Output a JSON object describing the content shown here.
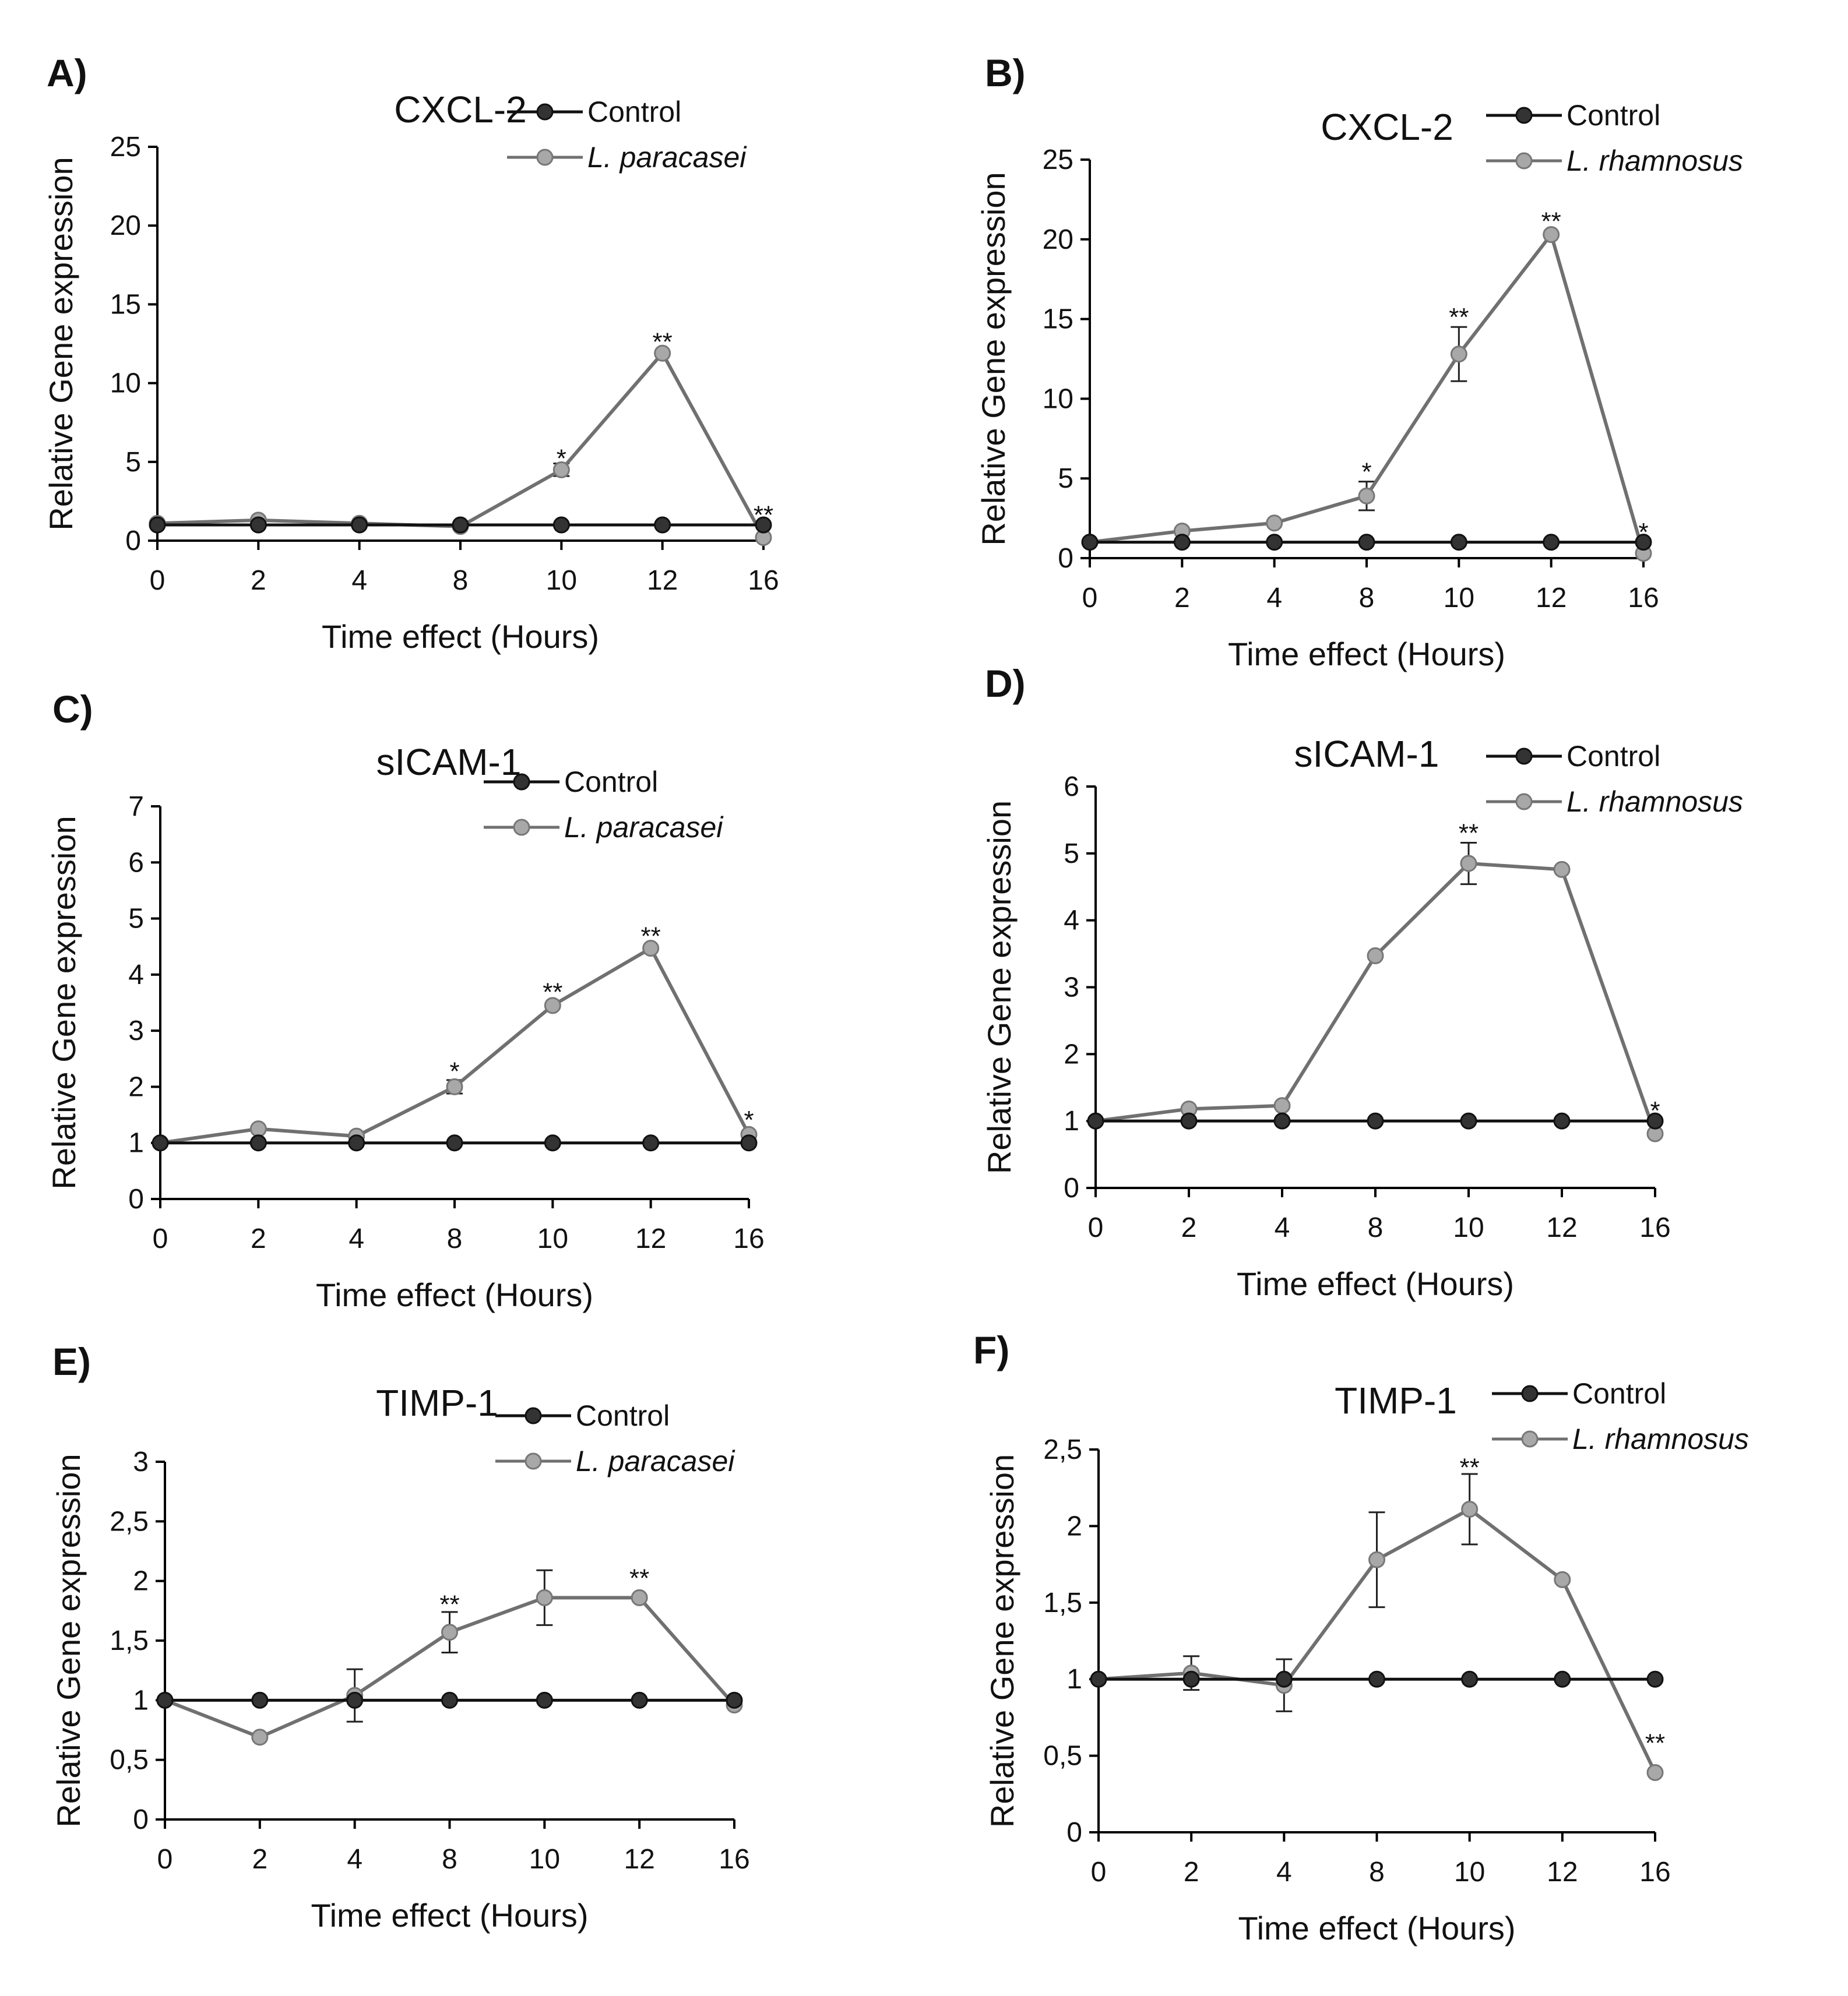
{
  "figure": {
    "description_visible": false
  },
  "chart_data": [
    {
      "panel": "A)",
      "type": "line",
      "title": "CXCL-2",
      "xlabel": "Time effect (Hours)",
      "ylabel": "Relative Gene expression",
      "categories": [
        "0",
        "2",
        "4",
        "8",
        "10",
        "12",
        "16"
      ],
      "ylim": [
        0,
        25
      ],
      "yticks": [
        0,
        5,
        10,
        15,
        20,
        25
      ],
      "ytick_labels": [
        "0",
        "5",
        "10",
        "15",
        "20",
        "25"
      ],
      "legend_position": "top-right",
      "series": [
        {
          "name": "Control",
          "italic": false,
          "color": "#333333",
          "values": [
            1,
            1,
            1,
            1,
            1,
            1,
            1
          ],
          "errors": [
            0,
            0,
            0,
            0,
            0,
            0,
            0
          ]
        },
        {
          "name": "L. paracasei",
          "italic": true,
          "color": "#A8A8A8",
          "values": [
            1.1,
            1.3,
            1.1,
            0.9,
            4.5,
            11.9,
            0.2
          ],
          "errors": [
            0,
            0,
            0,
            0,
            0.4,
            0,
            0
          ]
        }
      ],
      "annotations": [
        {
          "x": "10",
          "value": 5.2,
          "text": "*"
        },
        {
          "x": "12",
          "value": 12.6,
          "text": "**"
        },
        {
          "x": "16",
          "value": 1.6,
          "text": "**"
        }
      ]
    },
    {
      "panel": "B)",
      "type": "line",
      "title": "CXCL-2",
      "xlabel": "Time effect (Hours)",
      "ylabel": "Relative Gene expression",
      "categories": [
        "0",
        "2",
        "4",
        "8",
        "10",
        "12",
        "16"
      ],
      "ylim": [
        0,
        25
      ],
      "yticks": [
        0,
        5,
        10,
        15,
        20,
        25
      ],
      "ytick_labels": [
        "0",
        "5",
        "10",
        "15",
        "20",
        "25"
      ],
      "legend_position": "top-right",
      "series": [
        {
          "name": "Control",
          "italic": false,
          "color": "#333333",
          "values": [
            1,
            1,
            1,
            1,
            1,
            1,
            1
          ],
          "errors": [
            0,
            0,
            0,
            0,
            0,
            0,
            0
          ]
        },
        {
          "name": "L. rhamnosus",
          "italic": true,
          "color": "#A8A8A8",
          "values": [
            1,
            1.7,
            2.2,
            3.9,
            12.8,
            20.3,
            0.3
          ],
          "errors": [
            0,
            0,
            0,
            0.9,
            1.7,
            0,
            0
          ]
        }
      ],
      "annotations": [
        {
          "x": "8",
          "value": 5.4,
          "text": "*"
        },
        {
          "x": "10",
          "value": 15.1,
          "text": "**"
        },
        {
          "x": "12",
          "value": 21.1,
          "text": "**"
        },
        {
          "x": "16",
          "value": 1.6,
          "text": "*"
        }
      ]
    },
    {
      "panel": "C)",
      "type": "line",
      "title": "sICAM-1",
      "xlabel": "Time effect (Hours)",
      "ylabel": "Relative Gene expression",
      "categories": [
        "0",
        "2",
        "4",
        "8",
        "10",
        "12",
        "16"
      ],
      "ylim": [
        0,
        7
      ],
      "yticks": [
        0,
        1,
        2,
        3,
        4,
        5,
        6,
        7
      ],
      "ytick_labels": [
        "0",
        "1",
        "2",
        "3",
        "4",
        "5",
        "6",
        "7"
      ],
      "legend_position": "top-right",
      "series": [
        {
          "name": "Control",
          "italic": false,
          "color": "#333333",
          "values": [
            1,
            1,
            1,
            1,
            1,
            1,
            1
          ],
          "errors": [
            0,
            0,
            0,
            0,
            0,
            0,
            0
          ]
        },
        {
          "name": "L. paracasei",
          "italic": true,
          "color": "#A8A8A8",
          "values": [
            1,
            1.25,
            1.12,
            2,
            3.45,
            4.47,
            1.15
          ],
          "errors": [
            0,
            0,
            0,
            0.12,
            0,
            0,
            0
          ]
        }
      ],
      "annotations": [
        {
          "x": "8",
          "value": 2.27,
          "text": "*"
        },
        {
          "x": "10",
          "value": 3.68,
          "text": "**"
        },
        {
          "x": "12",
          "value": 4.68,
          "text": "**"
        },
        {
          "x": "16",
          "value": 1.4,
          "text": "*"
        }
      ]
    },
    {
      "panel": "D)",
      "type": "line",
      "title": "sICAM-1",
      "xlabel": "Time effect (Hours)",
      "ylabel": "Relative Gene expression",
      "categories": [
        "0",
        "2",
        "4",
        "8",
        "10",
        "12",
        "16"
      ],
      "ylim": [
        0,
        6
      ],
      "yticks": [
        0,
        1,
        2,
        3,
        4,
        5,
        6
      ],
      "ytick_labels": [
        "0",
        "1",
        "2",
        "3",
        "4",
        "5",
        "6"
      ],
      "legend_position": "top-right",
      "series": [
        {
          "name": "Control",
          "italic": false,
          "color": "#333333",
          "values": [
            1,
            1,
            1,
            1,
            1,
            1,
            1
          ],
          "errors": [
            0,
            0,
            0,
            0,
            0,
            0,
            0
          ]
        },
        {
          "name": "L. rhamnosus",
          "italic": true,
          "color": "#A8A8A8",
          "values": [
            1,
            1.18,
            1.23,
            3.47,
            4.85,
            4.76,
            0.81
          ],
          "errors": [
            0,
            0,
            0,
            0,
            0.31,
            0,
            0
          ]
        }
      ],
      "annotations": [
        {
          "x": "10",
          "value": 5.3,
          "text": "**"
        },
        {
          "x": "16",
          "value": 1.15,
          "text": "*"
        }
      ]
    },
    {
      "panel": "E)",
      "type": "line",
      "title": "TIMP-1",
      "xlabel": "Time effect (Hours)",
      "ylabel": "Relative Gene expression",
      "categories": [
        "0",
        "2",
        "4",
        "8",
        "10",
        "12",
        "16"
      ],
      "ylim": [
        0,
        3
      ],
      "yticks": [
        0,
        0.5,
        1,
        1.5,
        2,
        2.5,
        3
      ],
      "ytick_labels": [
        "0",
        "0,5",
        "1",
        "1,5",
        "2",
        "2,5",
        "3"
      ],
      "legend_position": "top-right",
      "series": [
        {
          "name": "Control",
          "italic": false,
          "color": "#333333",
          "values": [
            1,
            1,
            1,
            1,
            1,
            1,
            1
          ],
          "errors": [
            0,
            0,
            0,
            0,
            0,
            0,
            0
          ]
        },
        {
          "name": "L. paracasei",
          "italic": true,
          "color": "#A8A8A8",
          "values": [
            1,
            0.69,
            1.04,
            1.57,
            1.86,
            1.86,
            0.96
          ],
          "errors": [
            0,
            0,
            0.22,
            0.17,
            0.23,
            0,
            0
          ]
        }
      ],
      "annotations": [
        {
          "x": "8",
          "value": 1.8,
          "text": "**"
        },
        {
          "x": "12",
          "value": 2.02,
          "text": "**"
        }
      ]
    },
    {
      "panel": "F)",
      "type": "line",
      "title": "TIMP-1",
      "xlabel": "Time effect (Hours)",
      "ylabel": "Relative Gene expression",
      "categories": [
        "0",
        "2",
        "4",
        "8",
        "10",
        "12",
        "16"
      ],
      "ylim": [
        0,
        2.5
      ],
      "yticks": [
        0,
        0.5,
        1,
        1.5,
        2,
        2.5
      ],
      "ytick_labels": [
        "0",
        "0,5",
        "1",
        "1,5",
        "2",
        "2,5"
      ],
      "legend_position": "top-right",
      "series": [
        {
          "name": "Control",
          "italic": false,
          "color": "#333333",
          "values": [
            1,
            1,
            1,
            1,
            1,
            1,
            1
          ],
          "errors": [
            0,
            0,
            0,
            0,
            0,
            0,
            0
          ]
        },
        {
          "name": "L. rhamnosus",
          "italic": true,
          "color": "#A8A8A8",
          "values": [
            1,
            1.04,
            0.96,
            1.78,
            2.11,
            1.65,
            0.39
          ],
          "errors": [
            0,
            0.11,
            0.17,
            0.31,
            0.23,
            0,
            0
          ]
        }
      ],
      "annotations": [
        {
          "x": "10",
          "value": 2.38,
          "text": "**"
        },
        {
          "x": "16",
          "value": 0.58,
          "text": "**"
        }
      ]
    }
  ]
}
